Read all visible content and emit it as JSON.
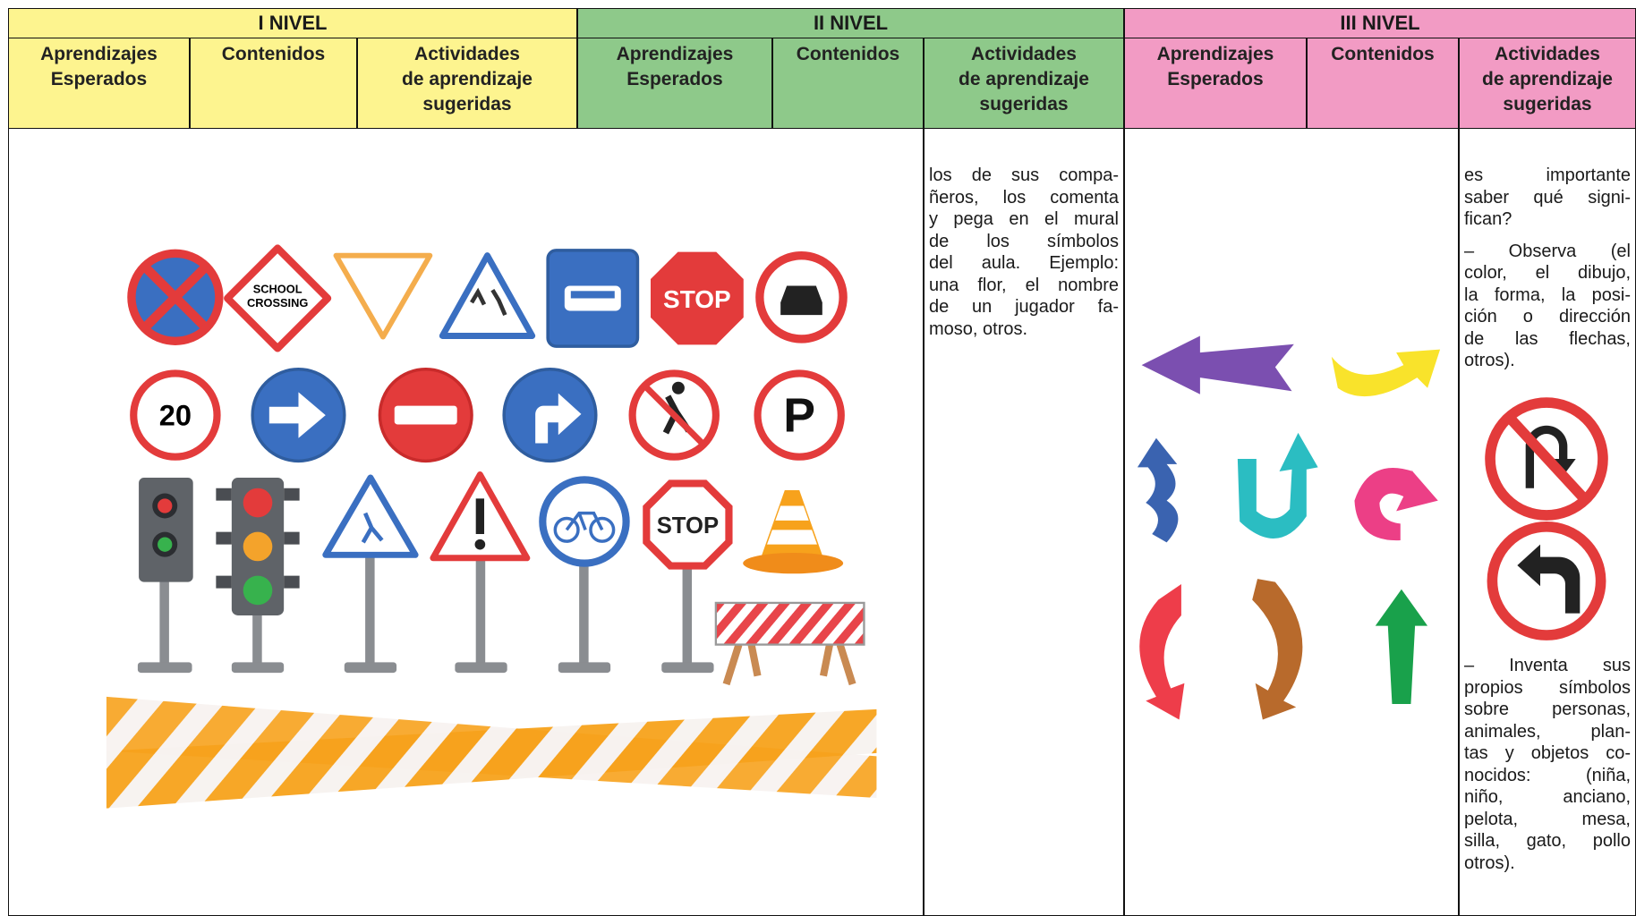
{
  "header": {
    "levels": [
      {
        "title": "I NIVEL",
        "columns": [
          [
            "Aprendizajes",
            "Esperados"
          ],
          [
            "Contenidos"
          ],
          [
            "Actividades",
            "de aprendizaje",
            "sugeridas"
          ]
        ]
      },
      {
        "title": "II NIVEL",
        "columns": [
          [
            "Aprendizajes",
            "Esperados"
          ],
          [
            "Contenidos"
          ],
          [
            "Actividades",
            "de aprendizaje",
            "sugeridas"
          ]
        ]
      },
      {
        "title": "III NIVEL",
        "columns": [
          [
            "Aprendizajes",
            "Esperados"
          ],
          [
            "Contenidos"
          ],
          [
            "Actividades",
            "de aprendizaje",
            "sugeridas"
          ]
        ]
      }
    ]
  },
  "body": {
    "signs": {
      "school_crossing": [
        "SCHOOL",
        "CROSSING"
      ],
      "stop_top": "STOP",
      "speed_limit": "20",
      "parking": "P",
      "stop_post": "STOP"
    },
    "level_2_activities": [
      "los de sus compa-",
      "ñeros, los comenta",
      "y pega en el mural",
      "de los símbolos",
      "del aula. Ejemplo:",
      "una flor, el nombre",
      "de un jugador fa-",
      "moso, otros."
    ],
    "level_3_activities": [
      [
        "es importante",
        "saber qué signi-",
        "fican?"
      ],
      [
        "– Observa (el",
        "color, el dibujo,",
        "la forma, la posi-",
        "ción o dirección",
        "de las flechas,",
        "otros)."
      ],
      [
        "– Inventa sus",
        "propios símbolos",
        "sobre personas,",
        "animales, plan-",
        "tas y objetos co-",
        "nocidos: (niña,",
        "niño, anciano,",
        "pelota, mesa,",
        "silla, gato, pollo",
        "otros)."
      ]
    ]
  }
}
